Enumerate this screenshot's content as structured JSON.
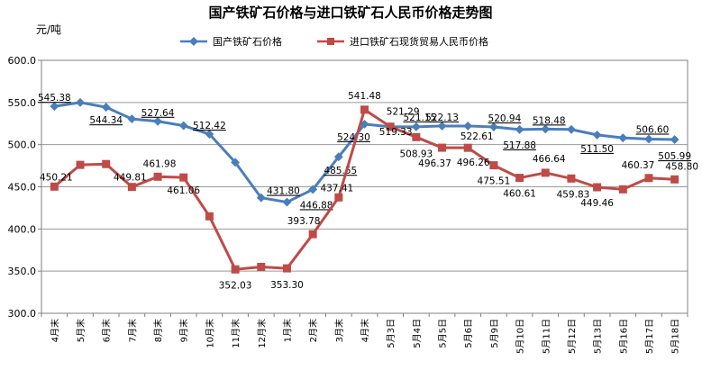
{
  "chart_data": {
    "type": "line",
    "title": "国产铁矿石价格与进口铁矿石人民币价格走势图",
    "ylabel": "元/吨",
    "ylim": [
      300,
      600
    ],
    "yticks": [
      "300.0",
      "350.0",
      "400.0",
      "450.0",
      "500.0",
      "550.0",
      "600.0"
    ],
    "grid": true,
    "legend_position": "top",
    "categories": [
      "4月末",
      "5月末",
      "6月末",
      "7月末",
      "8月末",
      "9月末",
      "10月末",
      "11月末",
      "12月末",
      "1月末",
      "2月末",
      "3月末",
      "4月末",
      "5月3日",
      "5月4日",
      "5月5日",
      "5月6日",
      "5月9日",
      "5月10日",
      "5月11日",
      "5月12日",
      "5月13日",
      "5月16日",
      "5月17日",
      "5月18日"
    ],
    "series": [
      {
        "name": "国产铁矿石价格",
        "color": "#4a7ebb",
        "marker": "diamond",
        "values": [
          545.38,
          550.0,
          544.34,
          530.5,
          527.64,
          522.5,
          512.42,
          479.0,
          437.0,
          431.8,
          446.88,
          485.55,
          524.3,
          521.15,
          521.15,
          522.13,
          522.13,
          520.94,
          517.88,
          518.48,
          518.0,
          511.5,
          508.0,
          506.6,
          505.99
        ],
        "labels": [
          "545.38",
          "",
          "544.34",
          "",
          "527.64",
          "",
          "512.42",
          "",
          "",
          "431.80",
          "446.88",
          "485.55",
          "524.30",
          "",
          "521.15",
          "522.13",
          "",
          "520.94",
          "517.88",
          "518.48",
          "",
          "511.50",
          "",
          "506.60",
          "505.99"
        ]
      },
      {
        "name": "进口铁矿石现货贸易人民币价格",
        "color": "#be4b48",
        "marker": "square",
        "values": [
          450.21,
          476.0,
          477.0,
          449.81,
          461.98,
          461.06,
          415.0,
          352.03,
          355.0,
          353.3,
          393.78,
          437.41,
          541.48,
          521.29,
          508.93,
          496.37,
          496.26,
          475.51,
          460.61,
          466.64,
          459.83,
          449.46,
          447.0,
          460.37,
          458.8
        ],
        "labels": [
          "450.21",
          "",
          "",
          "449.81",
          "461.98",
          "461.06",
          "",
          "352.03",
          "",
          "353.30",
          "393.78",
          "437.41",
          "541.48",
          "521.29",
          "508.93",
          "496.37",
          "496.26",
          "475.51",
          "460.61",
          "466.64",
          "459.83",
          "449.46",
          "",
          "460.37",
          "458.80"
        ],
        "extra_labels": [
          "519.33",
          "522.61"
        ]
      }
    ]
  }
}
